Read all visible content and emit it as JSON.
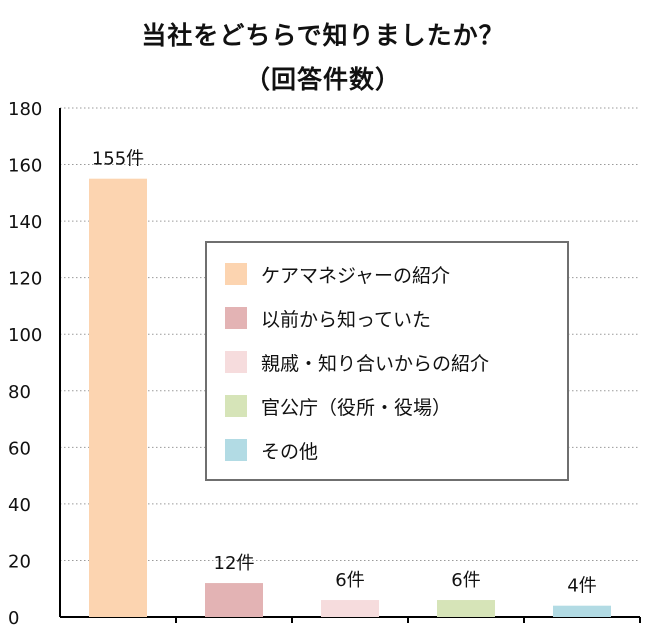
{
  "chart_data": {
    "type": "bar",
    "title": "当社をどちらで知りましたか？",
    "subtitle": "（回答件数）",
    "categories": [
      "ケアマネジャーの紹介",
      "以前から知っていた",
      "親戚・知り合いからの紹介",
      "官公庁（役所・役場）",
      "その他"
    ],
    "values": [
      155,
      12,
      6,
      6,
      4
    ],
    "data_labels": [
      "155件",
      "12件",
      "6件",
      "6件",
      "4件"
    ],
    "colors": [
      "#fcd4b0",
      "#e3b3b4",
      "#f6dcdd",
      "#d6e4b8",
      "#b2dbe4"
    ],
    "ylim": [
      0,
      180
    ],
    "yticks": [
      0,
      20,
      40,
      60,
      80,
      100,
      120,
      140,
      160,
      180
    ],
    "grid": true,
    "legend": "center-right"
  }
}
